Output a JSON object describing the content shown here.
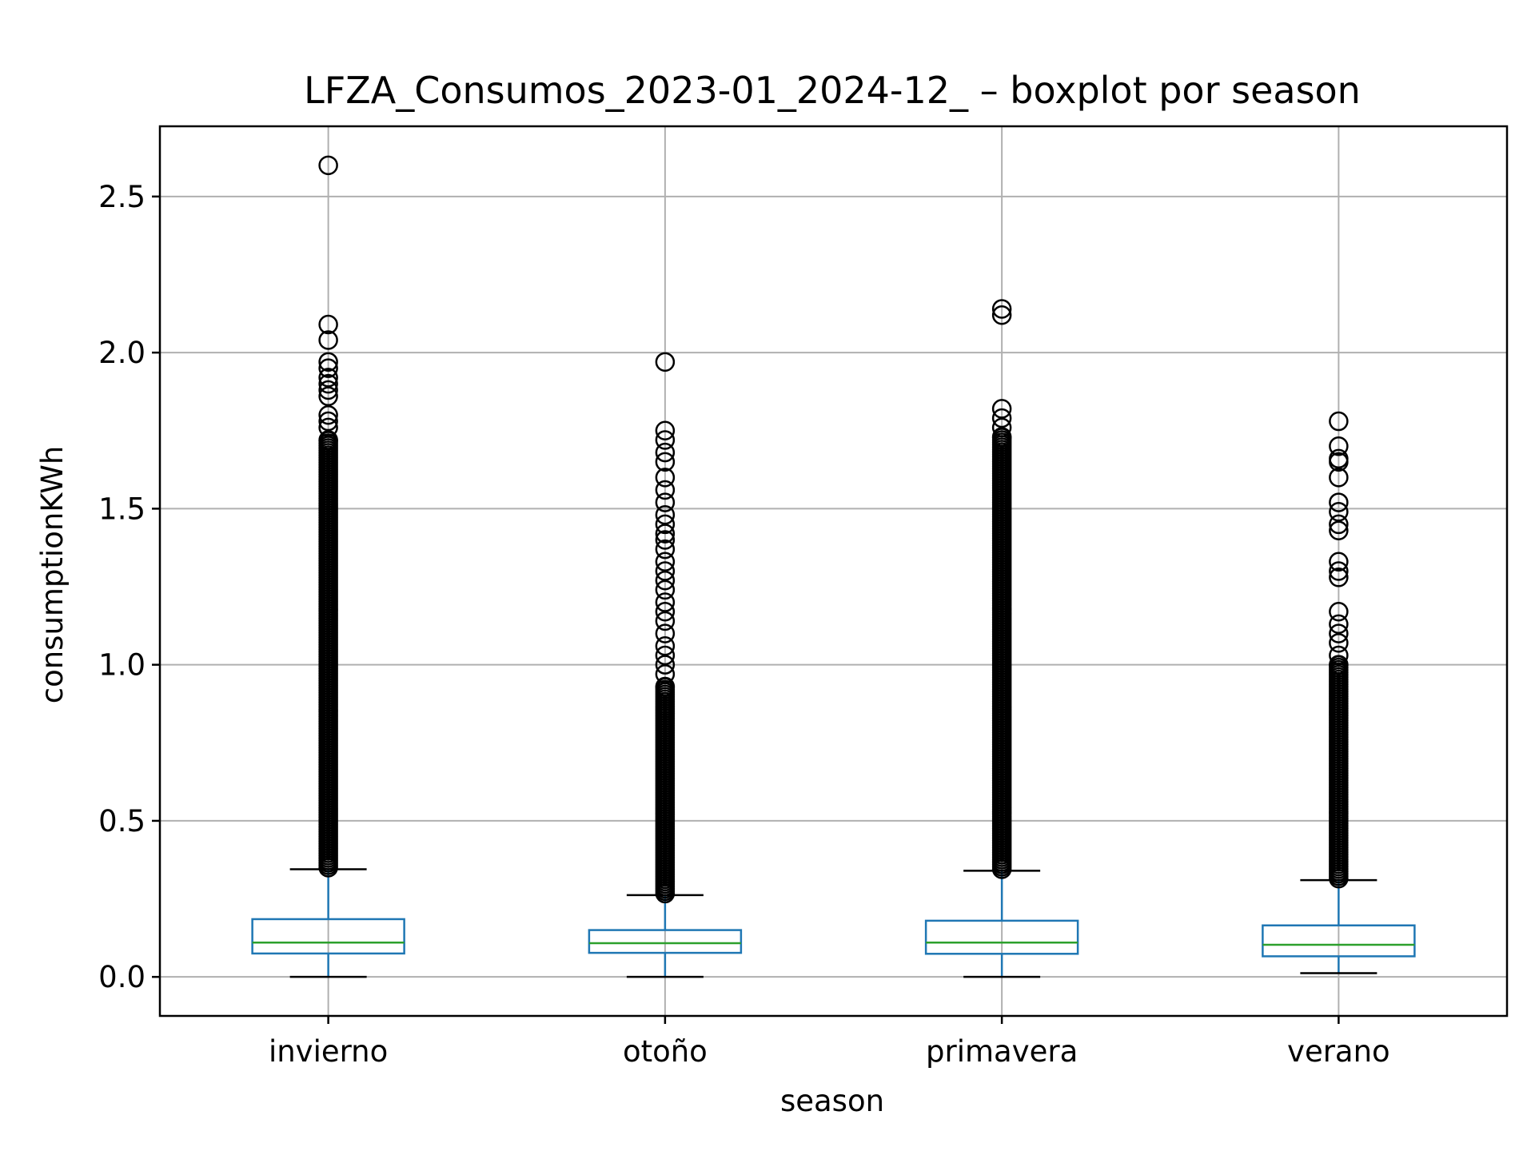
{
  "chart_data": {
    "type": "boxplot",
    "title": "LFZA_Consumos_2023-01_2024-12_ – boxplot por season",
    "xlabel": "season",
    "ylabel": "consumptionKWh",
    "ylim": [
      -0.125,
      2.725
    ],
    "yticks": [
      "0.0",
      "0.5",
      "1.0",
      "1.5",
      "2.0",
      "2.5"
    ],
    "ytick_values": [
      0.0,
      0.5,
      1.0,
      1.5,
      2.0,
      2.5
    ],
    "grid": true,
    "colors": {
      "box": "#1f77b4",
      "median": "#2ca02c",
      "flier": "#000000",
      "grid": "#b0b0b0"
    },
    "categories": [
      "invierno",
      "otoño",
      "primavera",
      "verano"
    ],
    "boxes": [
      {
        "category": "invierno",
        "whisker_low": 0.0,
        "q1": 0.075,
        "median": 0.11,
        "q3": 0.185,
        "whisker_high": 0.345,
        "fliers": [
          2.6,
          2.09,
          2.04,
          1.97,
          1.95,
          1.92,
          1.9,
          1.88,
          1.86,
          1.8,
          1.78,
          1.76,
          1.72
        ]
      },
      {
        "category": "otoño",
        "whisker_low": 0.0,
        "q1": 0.077,
        "median": 0.108,
        "q3": 0.15,
        "whisker_high": 0.262,
        "fliers": [
          1.97,
          1.75,
          1.72,
          1.68,
          1.65,
          1.6,
          1.56,
          1.52,
          1.48,
          1.45,
          1.42,
          1.4,
          1.37,
          1.33,
          1.3,
          1.27,
          1.24,
          1.2,
          1.17,
          1.14,
          1.1,
          1.06,
          1.03,
          1.0,
          0.97,
          0.93
        ]
      },
      {
        "category": "primavera",
        "whisker_low": 0.0,
        "q1": 0.074,
        "median": 0.11,
        "q3": 0.18,
        "whisker_high": 0.34,
        "fliers": [
          2.14,
          2.12,
          1.82,
          1.79,
          1.76,
          1.73
        ]
      },
      {
        "category": "verano",
        "whisker_low": 0.012,
        "q1": 0.066,
        "median": 0.103,
        "q3": 0.165,
        "whisker_high": 0.31,
        "fliers": [
          1.78,
          1.7,
          1.66,
          1.65,
          1.6,
          1.52,
          1.49,
          1.45,
          1.43,
          1.33,
          1.3,
          1.28,
          1.17,
          1.13,
          1.1,
          1.07,
          1.03,
          1.0
        ]
      }
    ]
  }
}
